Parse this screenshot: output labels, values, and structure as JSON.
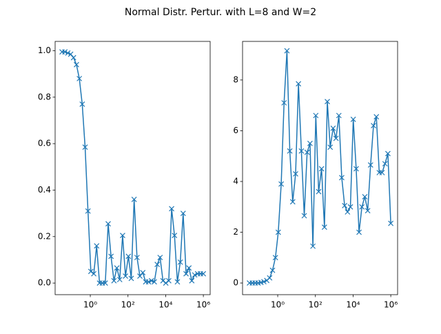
{
  "title": "Normal Distr. Pertur. with L=8 and W=2",
  "chart_data": [
    {
      "type": "line",
      "log_x": true,
      "marker": "x",
      "color": "#1f77b4",
      "x": [
        0.0316,
        0.045,
        0.064,
        0.091,
        0.129,
        0.184,
        0.262,
        0.373,
        0.53,
        0.754,
        1.07,
        1.53,
        2.17,
        3.09,
        4.39,
        6.25,
        8.89,
        12.6,
        18,
        25.6,
        36.4,
        51.8,
        73.7,
        105,
        149,
        212,
        302,
        429,
        611,
        869,
        1240,
        1760,
        2500,
        3560,
        5060,
        7200,
        10200,
        14600,
        20700,
        29400,
        41900,
        59600,
        84800,
        121000,
        172000,
        244000,
        347000,
        494000,
        703000,
        1000000
      ],
      "values": [
        0.995,
        0.995,
        0.99,
        0.985,
        0.97,
        0.94,
        0.88,
        0.77,
        0.585,
        0.31,
        0.05,
        0.04,
        0.16,
        0,
        0,
        0,
        0.255,
        0.115,
        0.01,
        0.065,
        0.015,
        0.205,
        0.03,
        0.115,
        0.02,
        0.36,
        0.11,
        0.03,
        0.045,
        0.005,
        0.005,
        0.01,
        0.005,
        0.08,
        0.11,
        0.01,
        0,
        0.01,
        0.32,
        0.205,
        0.005,
        0.09,
        0.3,
        0.04,
        0.065,
        0.01,
        0.035,
        0.04,
        0.04,
        0.04
      ],
      "xlim": [
        0.0136,
        2300000
      ],
      "xticks": [
        {
          "value": 1,
          "label": "10⁰"
        },
        {
          "value": 100,
          "label": "10²"
        },
        {
          "value": 10000,
          "label": "10⁴"
        },
        {
          "value": 1000000,
          "label": "10⁶"
        }
      ],
      "ylim": [
        -0.05,
        1.04
      ],
      "yticks": [
        {
          "value": 0,
          "label": "0.0"
        },
        {
          "value": 0.2,
          "label": "0.2"
        },
        {
          "value": 0.4,
          "label": "0.4"
        },
        {
          "value": 0.6,
          "label": "0.6"
        },
        {
          "value": 0.8,
          "label": "0.8"
        },
        {
          "value": 1,
          "label": "1.0"
        }
      ]
    },
    {
      "type": "line",
      "log_x": true,
      "marker": "x",
      "color": "#1f77b4",
      "x": [
        0.0316,
        0.045,
        0.064,
        0.091,
        0.129,
        0.184,
        0.262,
        0.373,
        0.53,
        0.754,
        1.07,
        1.53,
        2.17,
        3.09,
        4.39,
        6.25,
        8.89,
        12.6,
        18,
        25.6,
        36.4,
        51.8,
        73.7,
        105,
        149,
        212,
        302,
        429,
        611,
        869,
        1240,
        1760,
        2500,
        3560,
        5060,
        7200,
        10200,
        14600,
        20700,
        29400,
        41900,
        59600,
        84800,
        121000,
        172000,
        244000,
        347000,
        494000,
        703000,
        1000000
      ],
      "values": [
        0,
        0,
        0,
        0,
        0.02,
        0.05,
        0.1,
        0.2,
        0.5,
        1.0,
        2.0,
        3.9,
        7.1,
        9.15,
        5.2,
        3.2,
        4.3,
        7.85,
        5.2,
        2.65,
        5.15,
        5.5,
        1.45,
        6.6,
        3.6,
        4.5,
        2.2,
        7.15,
        5.35,
        6.1,
        5.7,
        6.6,
        4.15,
        3.05,
        2.8,
        3.0,
        6.45,
        4.5,
        2.0,
        3.0,
        3.4,
        2.85,
        4.65,
        6.2,
        6.55,
        4.35,
        4.35,
        4.7,
        5.1,
        2.35
      ],
      "xlim": [
        0.0136,
        2300000
      ],
      "xticks": [
        {
          "value": 1,
          "label": "10⁰"
        },
        {
          "value": 100,
          "label": "10²"
        },
        {
          "value": 10000,
          "label": "10⁴"
        },
        {
          "value": 1000000,
          "label": "10⁶"
        }
      ],
      "ylim": [
        -0.46,
        9.52
      ],
      "yticks": [
        0,
        2,
        4,
        6,
        8
      ]
    }
  ]
}
